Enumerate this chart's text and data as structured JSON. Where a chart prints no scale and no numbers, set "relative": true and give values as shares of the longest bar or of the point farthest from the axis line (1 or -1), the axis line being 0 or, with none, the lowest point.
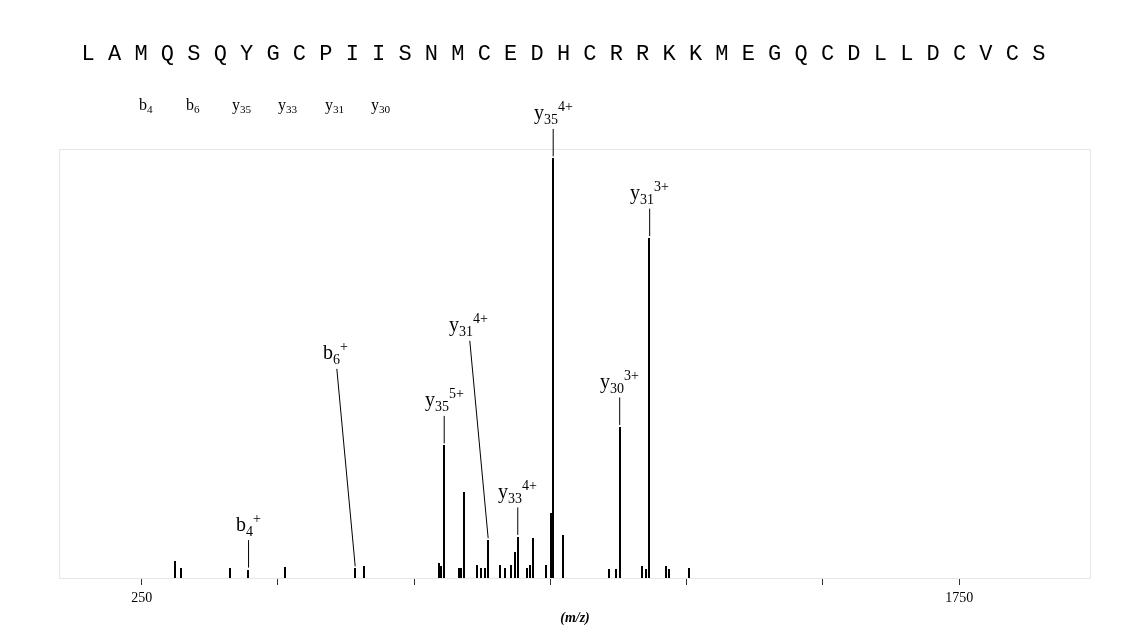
{
  "chart_data": {
    "type": "bar",
    "relative": true,
    "title": "L A M Q S Q Y G C P I I S N M C E D H C R R K K M E G Q C D L L D C V C S",
    "xlabel": "(m/z)",
    "x": [
      312,
      323,
      413,
      446,
      514,
      642,
      658,
      796,
      799,
      805,
      832,
      836,
      842,
      865,
      873,
      880,
      886,
      908,
      917,
      928,
      935,
      940,
      957,
      962,
      968,
      992,
      1001,
      1005,
      1023,
      1107,
      1120,
      1127,
      1168,
      1175,
      1182,
      1213,
      1217,
      1254
    ],
    "values": [
      0.04,
      0.023,
      0.023,
      0.02,
      0.027,
      0.023,
      0.028,
      0.035,
      0.028,
      0.316,
      0.024,
      0.024,
      0.204,
      0.03,
      0.024,
      0.024,
      0.09,
      0.03,
      0.024,
      0.03,
      0.062,
      0.098,
      0.024,
      0.03,
      0.095,
      0.03,
      0.156,
      1.0,
      0.103,
      0.022,
      0.022,
      0.36,
      0.028,
      0.022,
      0.81,
      0.028,
      0.022,
      0.024
    ],
    "color": "#000000",
    "xlim": [
      100,
      1990
    ],
    "xticks": [
      250,
      {
        "value": 500,
        "label": null
      },
      {
        "value": 750,
        "label": null
      },
      {
        "value": 1000,
        "label": null
      },
      {
        "value": 1250,
        "label": null
      },
      {
        "value": 1500,
        "label": null
      },
      1750
    ],
    "annotations": [
      "b$_{4}$",
      "b$_{6}$",
      "y$_{35}$",
      "y$_{33}$",
      "y$_{31}$",
      "y$_{30}$",
      {
        "text": "b$_{4}$$^{+}$",
        "x": 446,
        "y": 0.02
      },
      {
        "text": "b$_{6}$$^{+}$",
        "x": 642,
        "y": 0.023
      },
      {
        "text": "y$_{35}$$^{5+}$",
        "x": 805,
        "y": 0.316
      },
      {
        "text": "y$_{31}$$^{4+}$",
        "x": 886,
        "y": 0.09
      },
      {
        "text": "y$_{33}$$^{4+}$",
        "x": 940,
        "y": 0.098
      },
      {
        "text": "y$_{35}$$^{4+}$",
        "x": 1005,
        "y": 1.0
      },
      {
        "text": "y$_{30}$$^{3+}$",
        "x": 1127,
        "y": 0.36
      },
      {
        "text": "y$_{31}$$^{3+}$",
        "x": 1182,
        "y": 0.81
      }
    ]
  }
}
